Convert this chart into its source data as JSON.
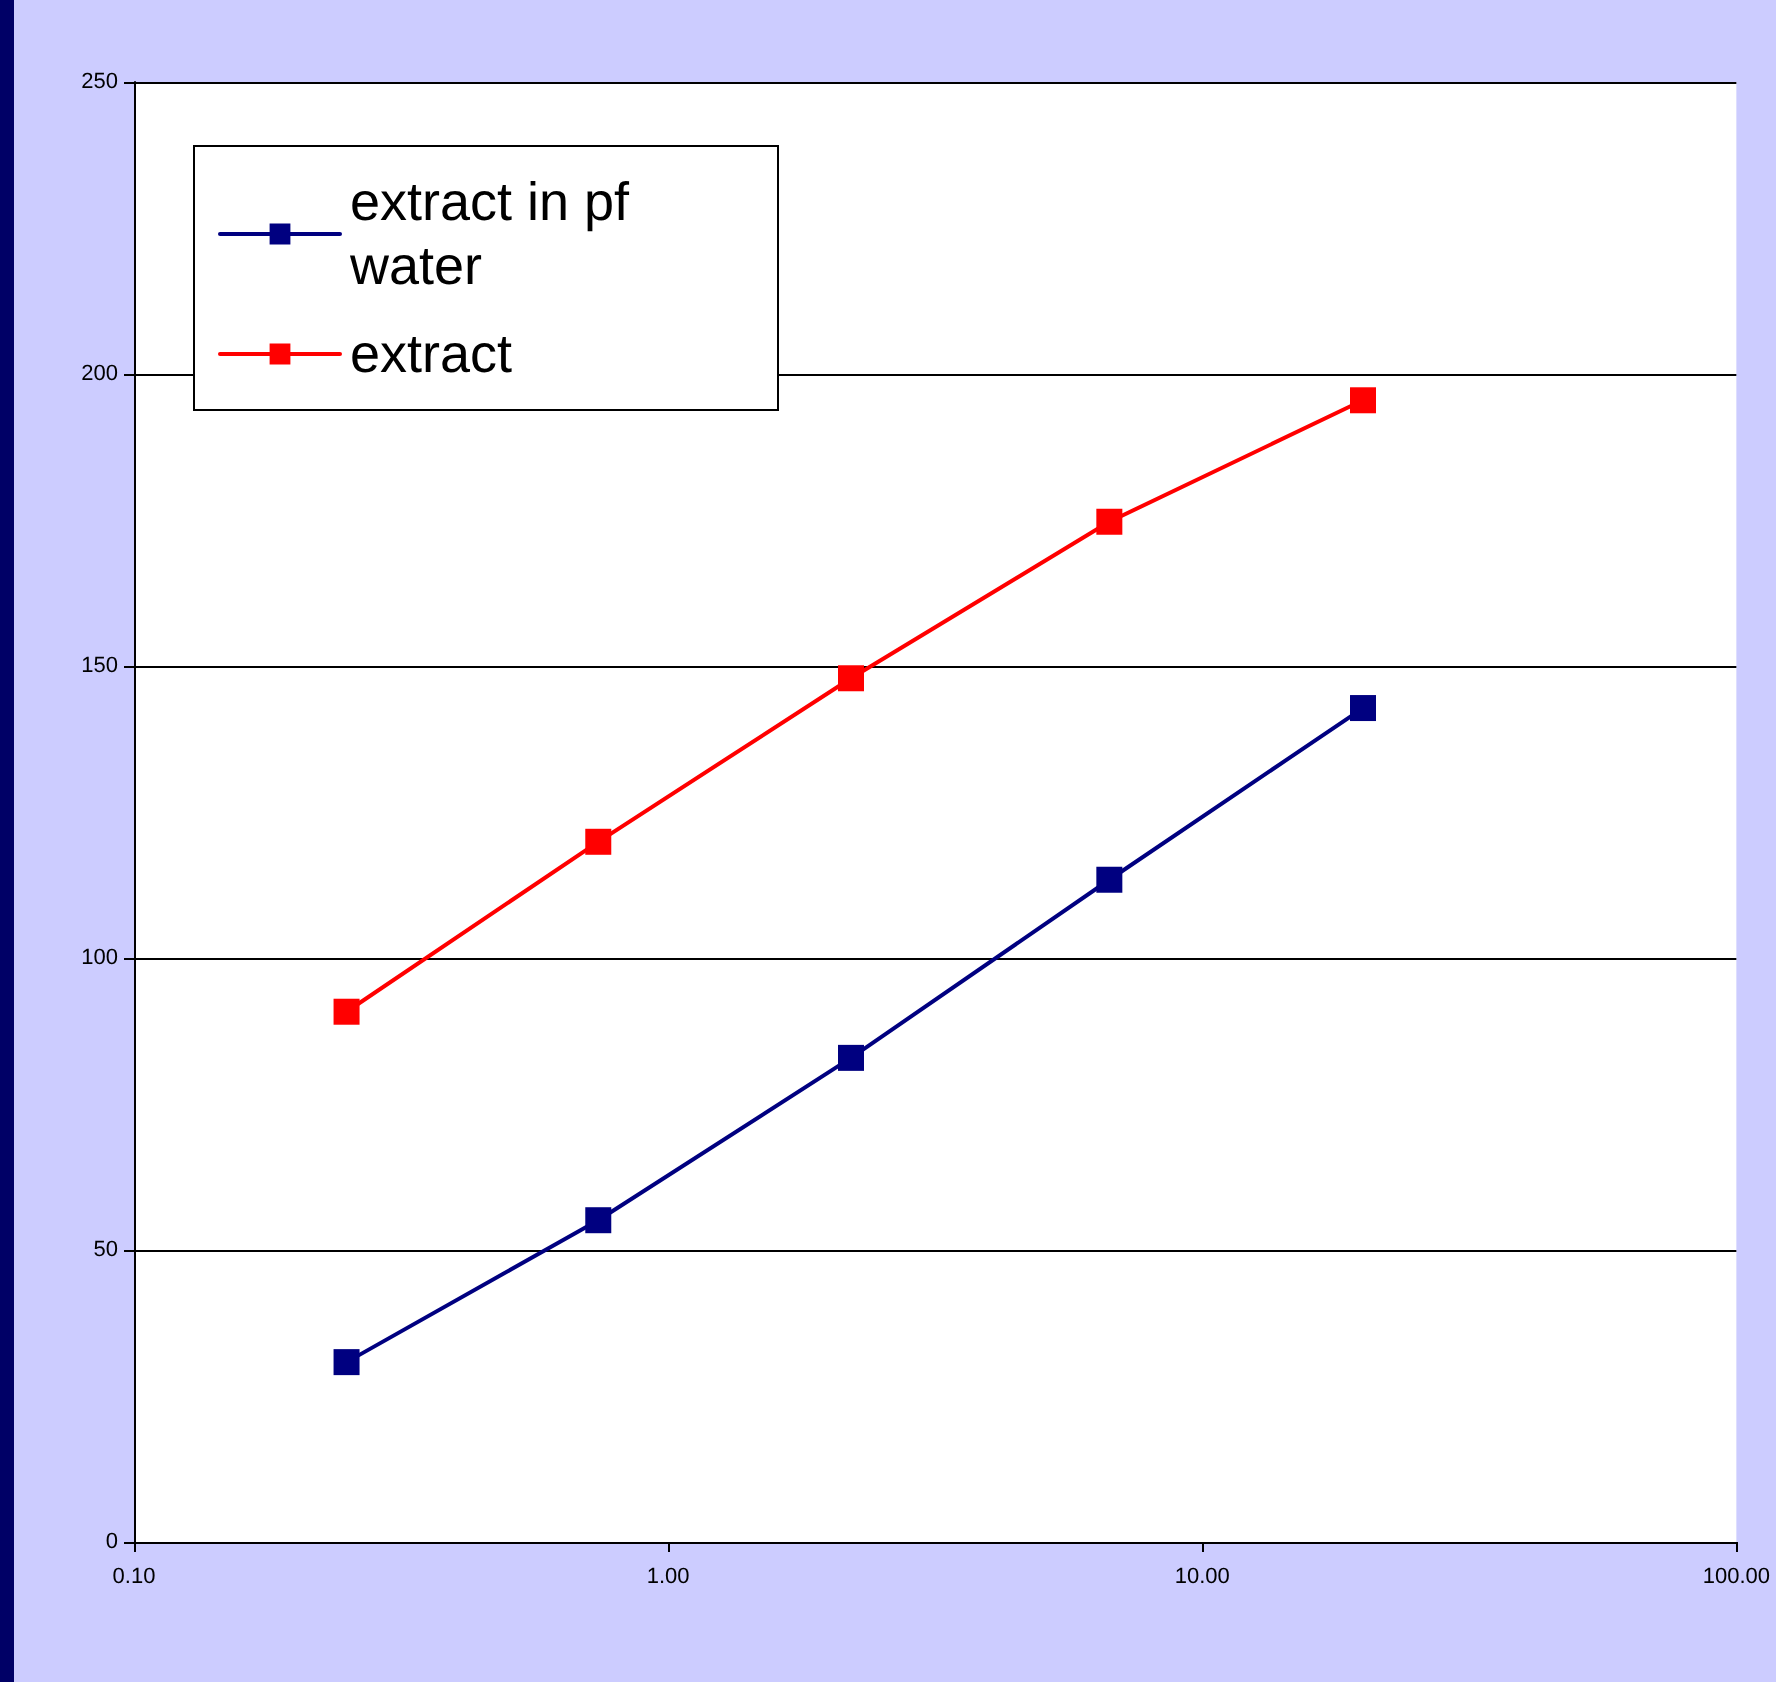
{
  "chart_data": {
    "type": "line",
    "x": [
      0.25,
      0.74,
      2.2,
      6.7,
      20
    ],
    "series": [
      {
        "name": "extract in pf water",
        "color": "#000080",
        "values": [
          30.8,
          55.1,
          82.9,
          113.4,
          142.8
        ]
      },
      {
        "name": "extract",
        "color": "#ff0000",
        "values": [
          90.8,
          119.9,
          147.9,
          174.7,
          195.5
        ]
      }
    ],
    "log": "x",
    "xlim": [
      0.1,
      100
    ],
    "xticks": [
      {
        "value": 0.1,
        "label": "0.10"
      },
      {
        "value": 1,
        "label": "1.00"
      },
      {
        "value": 10,
        "label": "10.00"
      },
      {
        "value": 100,
        "label": "100.00"
      }
    ],
    "ylim": [
      0,
      250
    ],
    "yticks": [
      0,
      50,
      100,
      150,
      200,
      250
    ],
    "grid": "y",
    "legend": "top left",
    "marker": "square",
    "line_style": "solid"
  }
}
